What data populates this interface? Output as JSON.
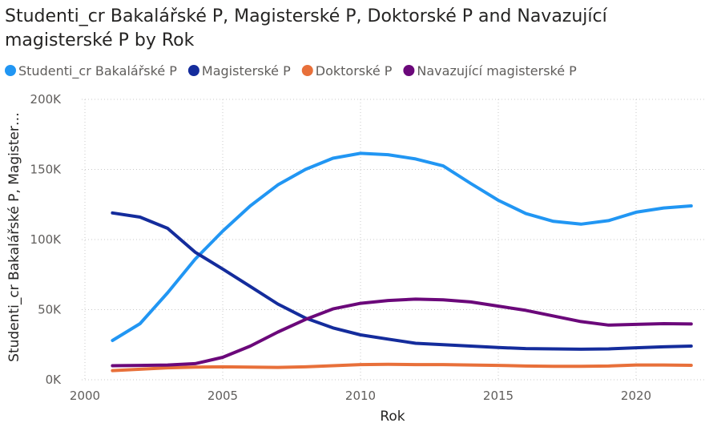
{
  "chart_data": {
    "type": "line",
    "title_line1": "Studenti_cr Bakalářské P, Magisterské P, Doktorské P and Navazující",
    "title_line2": "magisterské P by Rok",
    "xlabel": "Rok",
    "ylabel": "Studenti_cr Bakalářské P, Magister…",
    "x_ticks": [
      "2000",
      "2005",
      "2010",
      "2015",
      "2020"
    ],
    "y_ticks": [
      "0K",
      "50K",
      "100K",
      "150K",
      "200K"
    ],
    "xlim": [
      2000,
      2022.5
    ],
    "ylim": [
      0,
      200000
    ],
    "grid": true,
    "legend_position": "top-left",
    "x": [
      2001,
      2002,
      2003,
      2004,
      2005,
      2006,
      2007,
      2008,
      2009,
      2010,
      2011,
      2012,
      2013,
      2014,
      2015,
      2016,
      2017,
      2018,
      2019,
      2020,
      2021,
      2022
    ],
    "series": [
      {
        "name": "Studenti_cr Bakalářské P",
        "color": "#2196f3",
        "values": [
          28000,
          40000,
          62000,
          86000,
          106000,
          124000,
          139000,
          150000,
          158000,
          161500,
          160500,
          157500,
          152500,
          140000,
          128000,
          118500,
          113000,
          111000,
          113500,
          119500,
          122500,
          124000
        ]
      },
      {
        "name": "Magisterské P",
        "color": "#142c9c",
        "values": [
          119000,
          116000,
          108000,
          91000,
          79000,
          66500,
          54000,
          44000,
          37000,
          32000,
          29000,
          26000,
          25000,
          24000,
          23000,
          22200,
          22000,
          21800,
          22000,
          22800,
          23500,
          24000
        ]
      },
      {
        "name": "Doktorské P",
        "color": "#e8703a",
        "values": [
          6500,
          7500,
          8500,
          9000,
          9200,
          9000,
          8800,
          9200,
          10000,
          10800,
          11000,
          10800,
          10800,
          10500,
          10200,
          9800,
          9600,
          9600,
          9800,
          10500,
          10500,
          10300
        ]
      },
      {
        "name": "Navazující magisterské P",
        "color": "#6b087a",
        "values": [
          10000,
          10200,
          10500,
          11500,
          16000,
          24000,
          34000,
          43000,
          50500,
          54500,
          56500,
          57500,
          57000,
          55500,
          52500,
          49500,
          45500,
          41500,
          39000,
          39500,
          40000,
          39800
        ]
      }
    ]
  }
}
